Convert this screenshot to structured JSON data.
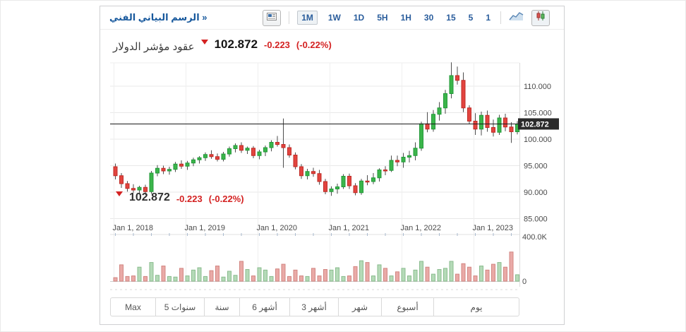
{
  "toolbar": {
    "title_link": "الرسم البياني الفني »",
    "timeframes": [
      "1M",
      "1W",
      "1D",
      "5H",
      "1H",
      "30",
      "15",
      "5",
      "1"
    ],
    "selected_timeframe": "1M",
    "icons": [
      "layout-icon",
      "line-chart-icon",
      "candlestick-icon"
    ]
  },
  "instrument": {
    "name": "عقود مؤشر الدولار",
    "last_price": "102.872",
    "change": "-0.223",
    "change_percent": "(-0.22%)"
  },
  "overlay_quote": {
    "last_price": "102.872",
    "change": "-0.223",
    "change_percent": "(-0.22%)"
  },
  "range_buttons": [
    "Max",
    "5 سنوات",
    "سنة",
    "6 أشهر",
    "3 أشهر",
    "شهر",
    "أسبوع",
    "يوم"
  ],
  "chart_data": {
    "type": "candlestick",
    "title": "عقود مؤشر الدولار",
    "x_tick_labels": [
      "Jan 1, 2018",
      "Jan 1, 2019",
      "Jan 1, 2020",
      "Jan 1, 2021",
      "Jan 1, 2022",
      "Jan 1, 2023"
    ],
    "y_tick_labels": [
      "110.000",
      "105.000",
      "100.000",
      "95.000",
      "90.000",
      "85.000"
    ],
    "y_tick_values": [
      110,
      105,
      100,
      95,
      90,
      85
    ],
    "ylim": [
      84.1,
      114.6
    ],
    "grid": true,
    "current_price": 102.872,
    "price_tag": "102.872",
    "volume_axis_labels": [
      "400.0K",
      "0"
    ],
    "volume_max_k": 400,
    "candles_ohlc": [
      [
        94.8,
        95.4,
        92.4,
        93.1
      ],
      [
        93.1,
        93.6,
        90.8,
        91.6
      ],
      [
        91.6,
        92.1,
        90.1,
        90.7
      ],
      [
        90.7,
        91.5,
        89.9,
        90.4
      ],
      [
        90.4,
        91.2,
        89.6,
        90.9
      ],
      [
        90.9,
        91.4,
        89.5,
        90.1
      ],
      [
        90.1,
        94.0,
        89.7,
        93.6
      ],
      [
        93.6,
        95.1,
        93.0,
        94.5
      ],
      [
        94.5,
        95.0,
        93.4,
        94.0
      ],
      [
        94.0,
        94.8,
        93.3,
        94.3
      ],
      [
        94.3,
        95.7,
        93.8,
        95.3
      ],
      [
        95.3,
        96.0,
        94.4,
        94.9
      ],
      [
        94.9,
        95.9,
        94.2,
        95.5
      ],
      [
        95.5,
        96.5,
        94.9,
        96.1
      ],
      [
        96.1,
        96.8,
        95.4,
        96.5
      ],
      [
        96.5,
        97.5,
        95.9,
        97.1
      ],
      [
        97.1,
        97.9,
        96.3,
        96.7
      ],
      [
        96.7,
        97.3,
        95.8,
        96.2
      ],
      [
        96.2,
        97.6,
        95.8,
        97.2
      ],
      [
        97.2,
        98.6,
        96.7,
        98.2
      ],
      [
        98.2,
        99.2,
        97.5,
        98.8
      ],
      [
        98.8,
        99.4,
        97.4,
        97.9
      ],
      [
        97.9,
        98.6,
        97.2,
        98.3
      ],
      [
        98.3,
        98.7,
        96.4,
        96.9
      ],
      [
        96.9,
        98.0,
        96.2,
        97.6
      ],
      [
        97.6,
        98.8,
        96.8,
        98.4
      ],
      [
        98.4,
        99.8,
        97.7,
        99.4
      ],
      [
        99.4,
        100.6,
        98.6,
        99.0
      ],
      [
        99.0,
        103.9,
        94.6,
        98.4
      ],
      [
        98.4,
        99.0,
        96.5,
        97.0
      ],
      [
        97.0,
        97.5,
        94.3,
        94.8
      ],
      [
        94.8,
        95.3,
        92.5,
        93.1
      ],
      [
        93.1,
        94.4,
        92.4,
        93.9
      ],
      [
        93.9,
        94.6,
        92.9,
        93.5
      ],
      [
        93.5,
        94.2,
        91.4,
        92.0
      ],
      [
        92.0,
        92.5,
        89.6,
        90.1
      ],
      [
        90.1,
        91.1,
        89.3,
        90.6
      ],
      [
        90.6,
        91.6,
        89.7,
        91.0
      ],
      [
        91.0,
        93.4,
        90.6,
        93.0
      ],
      [
        93.0,
        93.5,
        90.6,
        91.2
      ],
      [
        91.2,
        91.7,
        89.4,
        89.9
      ],
      [
        89.9,
        92.5,
        89.5,
        92.1
      ],
      [
        92.1,
        93.2,
        91.3,
        92.0
      ],
      [
        92.0,
        93.6,
        91.5,
        92.7
      ],
      [
        92.7,
        94.5,
        92.0,
        94.2
      ],
      [
        94.2,
        94.9,
        93.2,
        94.1
      ],
      [
        94.1,
        96.9,
        93.8,
        96.0
      ],
      [
        96.0,
        96.9,
        94.9,
        95.7
      ],
      [
        95.7,
        97.4,
        94.6,
        96.6
      ],
      [
        96.6,
        97.8,
        95.6,
        96.9
      ],
      [
        96.9,
        99.4,
        96.0,
        98.3
      ],
      [
        98.3,
        103.3,
        97.8,
        102.9
      ],
      [
        102.9,
        105.1,
        101.3,
        101.9
      ],
      [
        101.9,
        105.5,
        101.4,
        104.7
      ],
      [
        104.7,
        107.0,
        103.5,
        105.9
      ],
      [
        105.9,
        109.3,
        104.8,
        108.6
      ],
      [
        108.6,
        114.5,
        107.7,
        112.0
      ],
      [
        112.0,
        113.7,
        110.3,
        111.1
      ],
      [
        111.1,
        112.6,
        105.1,
        105.9
      ],
      [
        105.9,
        106.4,
        102.9,
        103.4
      ],
      [
        103.4,
        104.9,
        100.8,
        101.9
      ],
      [
        101.9,
        105.2,
        100.7,
        104.5
      ],
      [
        104.5,
        105.4,
        101.4,
        102.2
      ],
      [
        102.2,
        103.7,
        100.5,
        101.3
      ],
      [
        101.3,
        104.6,
        100.8,
        104.0
      ],
      [
        104.0,
        104.8,
        101.5,
        102.3
      ],
      [
        102.3,
        103.2,
        99.3,
        101.4
      ],
      [
        101.4,
        103.4,
        100.9,
        102.872
      ]
    ],
    "volumes_k": [
      30,
      140,
      40,
      45,
      120,
      40,
      160,
      50,
      130,
      40,
      35,
      110,
      45,
      95,
      115,
      40,
      90,
      130,
      35,
      85,
      50,
      170,
      100,
      45,
      115,
      95,
      40,
      105,
      145,
      40,
      95,
      45,
      40,
      110,
      45,
      100,
      95,
      115,
      40,
      45,
      125,
      175,
      160,
      45,
      140,
      110,
      45,
      80,
      110,
      45,
      95,
      170,
      120,
      60,
      100,
      110,
      170,
      60,
      150,
      120,
      45,
      130,
      95,
      145,
      160,
      120,
      250,
      55
    ]
  },
  "colors": {
    "up": "#3bb54a",
    "up_border": "#23983a",
    "down": "#e2443f",
    "down_border": "#bf2b26",
    "vol_up": "#b5dab8",
    "vol_up_border": "#8abc8e",
    "vol_down": "#e9aaa7",
    "vol_down_border": "#d28581",
    "wick": "#4d4d4d",
    "negative_text": "#d42222",
    "link_blue": "#18599d",
    "price_line": "#1a1a1a",
    "price_tag_bg": "#2b2b2b"
  }
}
